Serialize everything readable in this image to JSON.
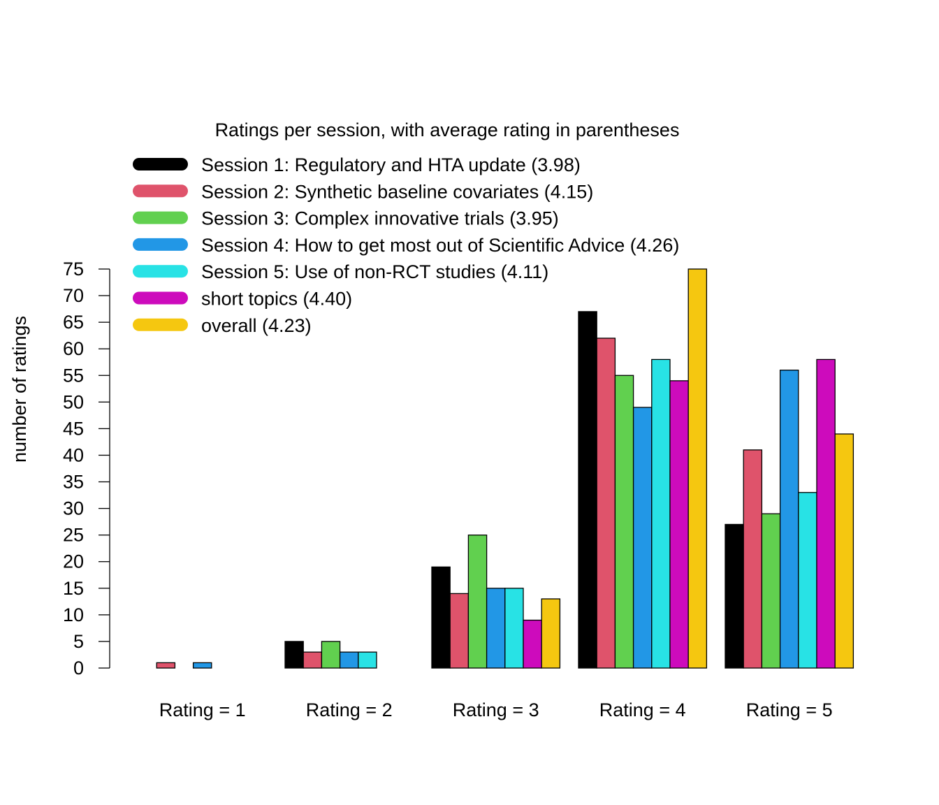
{
  "chart_data": {
    "type": "bar",
    "title": "",
    "xlabel": "",
    "ylabel": "number of ratings",
    "ylim": [
      0,
      75
    ],
    "yticks": [
      0,
      5,
      10,
      15,
      20,
      25,
      30,
      35,
      40,
      45,
      50,
      55,
      60,
      65,
      70,
      75
    ],
    "grid": false,
    "categories": [
      "Rating = 1",
      "Rating = 2",
      "Rating = 3",
      "Rating = 4",
      "Rating = 5"
    ],
    "legend": {
      "title": "Ratings per session, with average rating in parentheses",
      "placement": "top-left"
    },
    "series": [
      {
        "name": "Session 1: Regulatory and HTA update (3.98)",
        "color": "#000000",
        "values": [
          0,
          5,
          19,
          67,
          27
        ]
      },
      {
        "name": "Session 2: Synthetic baseline covariates (4.15)",
        "color": "#DF536B",
        "values": [
          1,
          3,
          14,
          62,
          41
        ]
      },
      {
        "name": "Session 3: Complex innovative trials (3.95)",
        "color": "#61D04F",
        "values": [
          0,
          5,
          25,
          55,
          29
        ]
      },
      {
        "name": "Session 4: How to get most out of Scientific Advice (4.26)",
        "color": "#2297E6",
        "values": [
          1,
          3,
          15,
          49,
          56
        ]
      },
      {
        "name": "Session 5: Use of non-RCT studies (4.11)",
        "color": "#28E2E5",
        "values": [
          0,
          3,
          15,
          58,
          33
        ]
      },
      {
        "name": "short topics (4.40)",
        "color": "#CD0BBC",
        "values": [
          0,
          0,
          9,
          54,
          58
        ]
      },
      {
        "name": "overall (4.23)",
        "color": "#F5C710",
        "values": [
          0,
          0,
          13,
          75,
          44
        ]
      }
    ]
  }
}
